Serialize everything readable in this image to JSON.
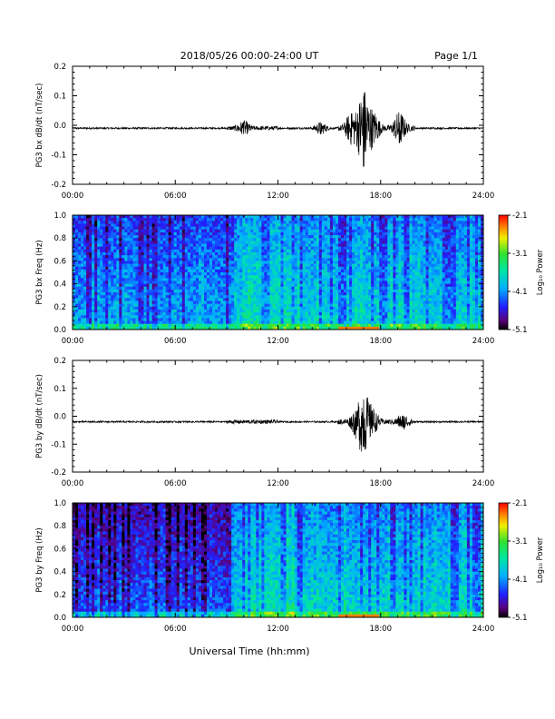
{
  "header": {
    "title": "2018/05/26  00:00-24:00 UT",
    "page": "Page 1/1"
  },
  "footer": {
    "xlabel": "Universal Time (hh:mm)"
  },
  "chart_data": [
    {
      "type": "line",
      "ylabel": "PG3 bx dB/dt (nT/sec)",
      "xlim": [
        0,
        24
      ],
      "ylim": [
        -0.2,
        0.2
      ],
      "x_ticks": [
        "00:00",
        "06:00",
        "12:00",
        "18:00",
        "24:00"
      ],
      "y_ticks": [
        "0.2",
        "0.1",
        "0.0",
        "-0.1",
        "-0.2"
      ],
      "baseline": -0.01,
      "events": [
        {
          "t": 10.0,
          "max": 0.01,
          "min": -0.03
        },
        {
          "t": 14.5,
          "max": 0.01,
          "min": -0.03
        },
        {
          "t": 16.3,
          "max": 0.04,
          "min": -0.04
        },
        {
          "t": 17.0,
          "max": 0.1,
          "min": -0.14
        },
        {
          "t": 17.6,
          "max": 0.03,
          "min": -0.06
        },
        {
          "t": 19.1,
          "max": 0.01,
          "min": -0.06
        }
      ]
    },
    {
      "type": "heatmap",
      "ylabel": "PG3 bx Freq (Hz)",
      "xlim": [
        0,
        24
      ],
      "ylim": [
        0,
        1
      ],
      "x_ticks": [
        "00:00",
        "06:00",
        "12:00",
        "18:00",
        "24:00"
      ],
      "y_ticks": [
        "1.0",
        "0.8",
        "0.6",
        "0.4",
        "0.2",
        "0.0"
      ],
      "colorbar": {
        "label": "Log₁₀ Power",
        "range": [
          -5.1,
          -2.1
        ],
        "ticks": [
          "-2.1",
          "-3.1",
          "-4.1",
          "-5.1"
        ]
      }
    },
    {
      "type": "line",
      "ylabel": "PG3 by dB/dt (nT/sec)",
      "xlim": [
        0,
        24
      ],
      "ylim": [
        -0.2,
        0.2
      ],
      "x_ticks": [
        "00:00",
        "06:00",
        "12:00",
        "18:00",
        "24:00"
      ],
      "y_ticks": [
        "0.2",
        "0.1",
        "0.0",
        "-0.1",
        "-0.2"
      ],
      "baseline": -0.02,
      "events": [
        {
          "t": 16.6,
          "max": 0.02,
          "min": -0.05
        },
        {
          "t": 17.0,
          "max": 0.06,
          "min": -0.11
        },
        {
          "t": 17.5,
          "max": 0.02,
          "min": -0.06
        },
        {
          "t": 19.3,
          "max": 0.0,
          "min": -0.04
        }
      ]
    },
    {
      "type": "heatmap",
      "ylabel": "PG3 by Freq (Hz)",
      "xlim": [
        0,
        24
      ],
      "ylim": [
        0,
        1
      ],
      "x_ticks": [
        "00:00",
        "06:00",
        "12:00",
        "18:00",
        "24:00"
      ],
      "y_ticks": [
        "1.0",
        "0.8",
        "0.6",
        "0.4",
        "0.2",
        "0.0"
      ],
      "colorbar": {
        "label": "Log₁₀ Power",
        "range": [
          -5.1,
          -2.1
        ],
        "ticks": [
          "-2.1",
          "-3.1",
          "-4.1",
          "-5.1"
        ]
      }
    }
  ]
}
